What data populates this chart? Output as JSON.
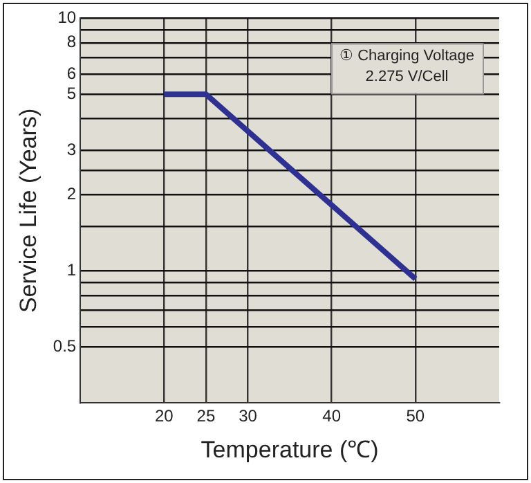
{
  "chart_data": {
    "type": "line",
    "xlabel": "Temperature (℃)",
    "ylabel": "Service Life (Years)",
    "annotations": [
      "① Charging Voltage\n2.275 V/Cell"
    ],
    "x": [
      20,
      25,
      50
    ],
    "series": [
      {
        "color": "#2e3192",
        "values": [
          5,
          5,
          0.93
        ]
      }
    ],
    "xlim": [
      10,
      60
    ],
    "xticks": [
      20,
      25,
      30,
      40,
      50
    ],
    "ylim": [
      0.3,
      10
    ],
    "log": "y",
    "yticks": [
      0.5,
      {
        "value": 0.6,
        "label": null
      },
      {
        "value": 0.7,
        "label": null
      },
      {
        "value": 0.8,
        "label": null
      },
      {
        "value": 0.9,
        "label": null
      },
      1,
      {
        "value": 1.5,
        "label": null
      },
      2,
      {
        "value": 2.5,
        "label": null
      },
      3,
      {
        "value": 4,
        "label": null
      },
      5,
      6,
      {
        "value": 7,
        "label": null
      },
      8,
      {
        "value": 9,
        "label": null
      },
      10
    ],
    "grid": true,
    "legend": false,
    "marker": "none",
    "line_style": "solid"
  }
}
